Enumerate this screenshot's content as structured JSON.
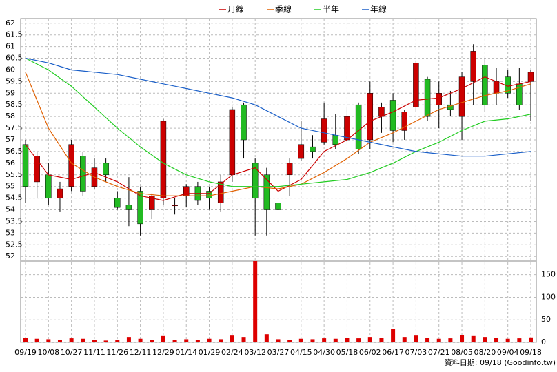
{
  "chart_data": {
    "type": "candlestick",
    "categories": [
      "09/19",
      null,
      "10/08",
      null,
      "10/27",
      null,
      "11/11",
      null,
      "11/26",
      null,
      "12/11",
      null,
      "12/29",
      null,
      "01/14",
      null,
      "01/29",
      null,
      "02/24",
      null,
      "03/12",
      null,
      "03/27",
      null,
      "04/15",
      null,
      "04/30",
      null,
      "05/18",
      null,
      "06/02",
      null,
      "06/17",
      null,
      "07/03",
      null,
      "07/21",
      null,
      "08/05",
      null,
      "08/20",
      null,
      "09/04",
      null,
      "09/18"
    ],
    "open": [
      56.8,
      55.2,
      55.5,
      54.5,
      55.0,
      56.3,
      55.0,
      56.0,
      54.5,
      54.2,
      54.8,
      54.0,
      54.5,
      54.2,
      54.6,
      55.0,
      54.8,
      54.3,
      55.5,
      58.5,
      56.0,
      55.5,
      54.3,
      55.5,
      56.2,
      56.7,
      56.9,
      57.2,
      57.0,
      58.5,
      57.0,
      58.0,
      58.7,
      57.4,
      58.4,
      59.6,
      58.5,
      58.5,
      58.0,
      59.5,
      60.2,
      59.0,
      59.7,
      59.4,
      59.5
    ],
    "high": [
      57.0,
      56.5,
      56.0,
      55.2,
      57.0,
      56.5,
      56.2,
      56.2,
      54.8,
      55.4,
      55.0,
      54.7,
      57.9,
      54.5,
      55.1,
      55.2,
      55.0,
      55.5,
      58.4,
      58.6,
      56.2,
      55.8,
      54.8,
      56.2,
      57.8,
      57.2,
      58.6,
      58.1,
      58.4,
      58.6,
      59.5,
      58.6,
      59.0,
      58.3,
      60.4,
      59.7,
      59.5,
      59.1,
      59.9,
      61.1,
      60.5,
      60.1,
      60.0,
      60.1,
      60.0
    ],
    "low": [
      54.3,
      54.5,
      54.2,
      53.9,
      54.8,
      54.6,
      54.9,
      55.2,
      54.0,
      53.3,
      52.9,
      53.6,
      54.2,
      53.8,
      54.1,
      54.2,
      54.0,
      53.9,
      55.2,
      56.2,
      52.9,
      52.9,
      53.7,
      54.6,
      56.1,
      56.2,
      56.8,
      56.6,
      56.9,
      56.4,
      56.6,
      57.3,
      56.9,
      57.0,
      58.2,
      57.8,
      57.5,
      58.0,
      57.0,
      58.5,
      58.2,
      58.5,
      58.8,
      58.3,
      57.8
    ],
    "close": [
      55.0,
      56.3,
      54.5,
      54.9,
      56.8,
      54.8,
      55.8,
      55.5,
      54.1,
      54.0,
      53.4,
      54.6,
      57.8,
      54.2,
      55.0,
      54.4,
      54.5,
      55.2,
      58.3,
      57.0,
      54.5,
      54.0,
      54.0,
      56.0,
      56.8,
      56.5,
      57.9,
      56.8,
      58.0,
      56.6,
      59.0,
      58.4,
      57.4,
      58.2,
      60.3,
      58.0,
      59.0,
      58.3,
      59.7,
      60.8,
      58.5,
      59.5,
      59.0,
      58.5,
      59.9
    ],
    "volume": [
      10,
      8,
      7,
      6,
      9,
      8,
      5,
      4,
      6,
      12,
      8,
      5,
      14,
      6,
      7,
      6,
      8,
      7,
      15,
      12,
      180,
      18,
      7,
      6,
      8,
      7,
      9,
      8,
      10,
      9,
      12,
      10,
      30,
      12,
      15,
      10,
      8,
      9,
      16,
      14,
      12,
      10,
      8,
      9,
      11
    ],
    "up_color": "#cc0000",
    "down_color": "#22bb22",
    "volume_color": "#dd0000",
    "series": [
      {
        "name": "月線",
        "color": "#cc0000",
        "x": [
          0,
          2,
          4,
          6,
          8,
          10,
          12,
          14,
          16,
          18,
          20,
          22,
          24,
          26,
          28,
          30,
          32,
          34,
          36,
          38,
          40,
          42,
          44
        ],
        "values": [
          56.8,
          55.5,
          55.3,
          55.6,
          55.2,
          54.6,
          54.4,
          54.7,
          54.7,
          55.5,
          55.8,
          54.8,
          55.3,
          56.5,
          57.0,
          57.8,
          58.2,
          58.7,
          58.8,
          59.2,
          59.7,
          59.3,
          59.5
        ]
      },
      {
        "name": "季線",
        "color": "#e06000",
        "x": [
          0,
          2,
          4,
          6,
          8,
          10,
          12,
          14,
          16,
          18,
          20,
          22,
          24,
          26,
          28,
          30,
          32,
          34,
          36,
          38,
          40,
          42,
          44
        ],
        "values": [
          59.9,
          57.5,
          56.0,
          55.4,
          55.0,
          54.7,
          54.6,
          54.6,
          54.6,
          54.8,
          55.0,
          54.9,
          55.1,
          55.6,
          56.2,
          56.9,
          57.3,
          57.8,
          58.3,
          58.6,
          58.9,
          59.1,
          59.4
        ]
      },
      {
        "name": "半年",
        "color": "#22cc22",
        "x": [
          0,
          2,
          4,
          6,
          8,
          10,
          12,
          14,
          16,
          18,
          20,
          22,
          24,
          26,
          28,
          30,
          32,
          34,
          36,
          38,
          40,
          42,
          44
        ],
        "values": [
          60.5,
          60.0,
          59.3,
          58.4,
          57.5,
          56.7,
          56.0,
          55.5,
          55.2,
          55.0,
          55.0,
          55.0,
          55.1,
          55.2,
          55.3,
          55.6,
          56.0,
          56.5,
          56.9,
          57.4,
          57.8,
          57.9,
          58.1
        ]
      },
      {
        "name": "年線",
        "color": "#1a5fc8",
        "x": [
          0,
          2,
          4,
          6,
          8,
          10,
          12,
          14,
          16,
          18,
          20,
          22,
          24,
          26,
          28,
          30,
          32,
          34,
          36,
          38,
          40,
          42,
          44
        ],
        "values": [
          60.5,
          60.3,
          60.0,
          59.9,
          59.8,
          59.6,
          59.4,
          59.2,
          59.0,
          58.8,
          58.5,
          58.0,
          57.5,
          57.3,
          57.1,
          56.9,
          56.7,
          56.5,
          56.4,
          56.3,
          56.3,
          56.4,
          56.5
        ]
      }
    ],
    "ylim": [
      51.8,
      62.2
    ],
    "yticks": [
      52,
      52.5,
      53,
      53.5,
      54,
      54.5,
      55,
      55.5,
      56,
      56.5,
      57,
      57.5,
      58,
      58.5,
      59,
      59.5,
      60,
      60.5,
      61,
      61.5,
      62
    ],
    "y2lim": [
      0,
      180
    ],
    "y2ticks": [
      0,
      50,
      100,
      150
    ],
    "grid": true,
    "source_note": "資料日期: 09/18  (Goodinfo.tw)"
  }
}
